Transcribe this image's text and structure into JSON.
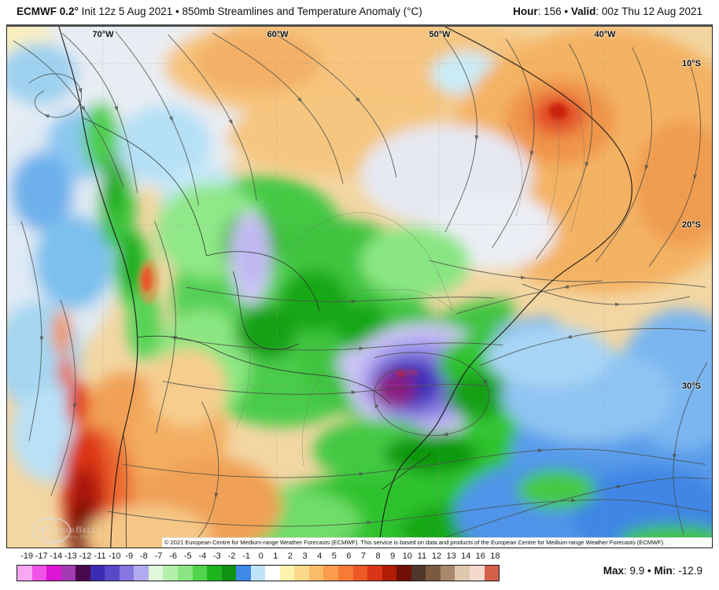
{
  "header": {
    "model_bold": "ECMWF 0.2°",
    "title_rest": " Init 12z 5 Aug 2021 • 850mb Streamlines and Temperature Anomaly (°C)",
    "hour_label": "Hour",
    "hour_value": ": 156 • ",
    "valid_label": "Valid",
    "valid_value": ": 00z Thu 12 Aug 2021"
  },
  "map": {
    "lon_labels": [
      "70°W",
      "60°W",
      "50°W",
      "40°W"
    ],
    "lat_labels": [
      "10°S",
      "20°S",
      "30°S"
    ],
    "copyright": "© 2021 European Centre for Medium-range Weather Forecasts (ECMWF). This service is based on data and products of the European Centre for Medium-range Weather Forecasts (ECMWF).",
    "watermark_title": "WeatherBell",
    "watermark_sub": "Analytics LLC"
  },
  "colorbar": {
    "labels": [
      "-19",
      "-17",
      "-14",
      "-13",
      "-12",
      "-11",
      "-10",
      "-9",
      "-8",
      "-7",
      "-6",
      "-5",
      "-4",
      "-3",
      "-2",
      "-1",
      "0",
      "1",
      "2",
      "3",
      "4",
      "5",
      "6",
      "7",
      "8",
      "9",
      "10",
      "11",
      "12",
      "13",
      "14",
      "16",
      "18"
    ],
    "colors": [
      "#f8a5f2",
      "#ef52e6",
      "#dc14d4",
      "#a43ab4",
      "#4a084e",
      "#3b2bb2",
      "#5749c9",
      "#8476de",
      "#b2aaf0",
      "#dff8da",
      "#b4f0ac",
      "#8ae682",
      "#50d44e",
      "#1eb41e",
      "#0f9212",
      "#3f88e8",
      "#bfe4fa",
      "#ffffff",
      "#fdf2ad",
      "#fcd98a",
      "#fbbc67",
      "#fa9c4b",
      "#f67b35",
      "#ee5826",
      "#d93516",
      "#b01c06",
      "#701004",
      "#4f372a",
      "#7b5a40",
      "#a8886a",
      "#dec8ae",
      "#f4d9cc",
      "#d4604a"
    ]
  },
  "stats": {
    "max_label": "Max",
    "max_value": ": 9.9 • ",
    "min_label": "Min",
    "min_value": ": -12.9"
  }
}
